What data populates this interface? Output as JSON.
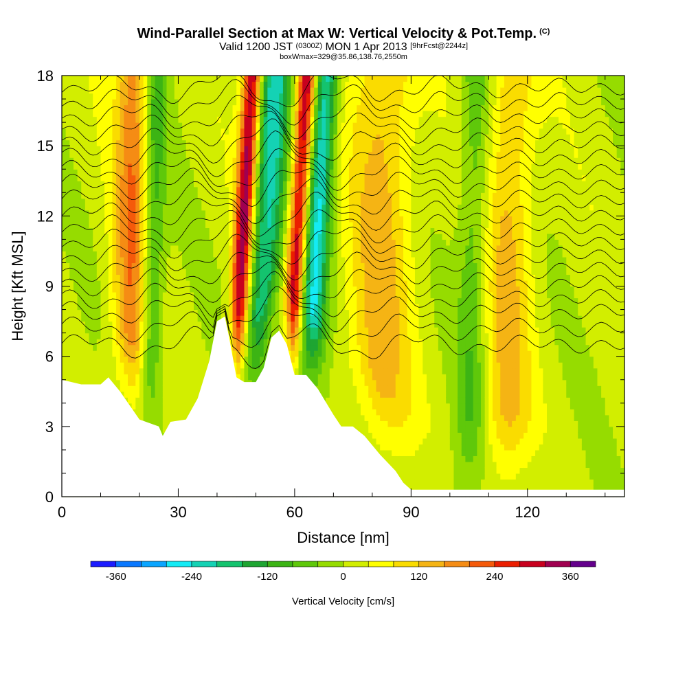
{
  "header": {
    "title": "Wind-Parallel Section at Max W: Vertical Velocity & Pot.Temp.",
    "copyright": "(C)",
    "valid_prefix": "Valid 1200 JST",
    "valid_zulu": "(0300Z)",
    "valid_date": "MON 1 Apr 2013",
    "forecast_tag": "[9hrFcst@2244z]",
    "box_info": "boxWmax=329@35.86,138.76,2550m"
  },
  "chart_data": {
    "type": "heatmap",
    "title": "Wind-Parallel Section at Max W: Vertical Velocity & Pot.Temp.",
    "xlabel": "Distance [nm]",
    "ylabel": "Height [Kft MSL]",
    "xlim": [
      0,
      145
    ],
    "ylim": [
      0,
      18
    ],
    "x_ticks": [
      "0",
      "30",
      "60",
      "90",
      "120"
    ],
    "x_tick_values": [
      0,
      30,
      60,
      90,
      120
    ],
    "y_ticks": [
      "0",
      "3",
      "6",
      "9",
      "12",
      "15",
      "18"
    ],
    "y_tick_values": [
      0,
      3,
      6,
      9,
      12,
      15,
      18
    ],
    "colorbar": {
      "label": "Vertical Velocity [cm/s]",
      "tick_labels": [
        "-360",
        "-240",
        "-120",
        "0",
        "120",
        "240",
        "360"
      ],
      "tick_values": [
        -360,
        -240,
        -120,
        0,
        120,
        240,
        360
      ],
      "bins": [
        -400,
        -360,
        -320,
        -280,
        -240,
        -200,
        -160,
        -120,
        -80,
        -40,
        0,
        40,
        80,
        120,
        160,
        200,
        240,
        280,
        320,
        360,
        400
      ],
      "colors": [
        "#1c1cff",
        "#0a78ff",
        "#0aa5ff",
        "#14ebf5",
        "#14d2b4",
        "#14c36e",
        "#1ea532",
        "#3cb414",
        "#5fc80a",
        "#96dc00",
        "#d2ee00",
        "#ffff00",
        "#fadc00",
        "#f5b414",
        "#f58c14",
        "#f55a0a",
        "#eb1e00",
        "#c8001e",
        "#a00050",
        "#64008c"
      ]
    },
    "terrain_heights_kft": [
      [
        0,
        5.0
      ],
      [
        5,
        4.8
      ],
      [
        10,
        4.8
      ],
      [
        12,
        5.1
      ],
      [
        15,
        4.5
      ],
      [
        20,
        3.3
      ],
      [
        25,
        3.0
      ],
      [
        26,
        2.6
      ],
      [
        28,
        3.2
      ],
      [
        32,
        3.3
      ],
      [
        35,
        4.2
      ],
      [
        38,
        5.8
      ],
      [
        40,
        7.5
      ],
      [
        42,
        7.7
      ],
      [
        43,
        6.9
      ],
      [
        45,
        5.1
      ],
      [
        47,
        4.9
      ],
      [
        50,
        4.9
      ],
      [
        52,
        5.5
      ],
      [
        54,
        6.8
      ],
      [
        56,
        7.1
      ],
      [
        58,
        6.5
      ],
      [
        60,
        5.2
      ],
      [
        63,
        5.2
      ],
      [
        66,
        4.6
      ],
      [
        70,
        3.5
      ],
      [
        72,
        3.0
      ],
      [
        75,
        3.0
      ],
      [
        78,
        2.6
      ],
      [
        82,
        1.8
      ],
      [
        86,
        1.1
      ],
      [
        88,
        0.6
      ],
      [
        90,
        0.3
      ],
      [
        145,
        0.3
      ]
    ],
    "updraft_bands": [
      {
        "x": 18,
        "w": 180,
        "width_nm": 6
      },
      {
        "x": 46,
        "w": 329,
        "width_nm": 3
      },
      {
        "x": 60,
        "w": 310,
        "width_nm": 3
      },
      {
        "x": 82,
        "w": 120,
        "width_nm": 10
      },
      {
        "x": 115,
        "w": 110,
        "width_nm": 8
      }
    ],
    "downdraft_bands": [
      {
        "x": 23,
        "w": -140,
        "width_nm": 4
      },
      {
        "x": 52,
        "w": -230,
        "width_nm": 5
      },
      {
        "x": 65,
        "w": -250,
        "width_nm": 4
      },
      {
        "x": 106,
        "w": -90,
        "width_nm": 5
      }
    ],
    "theta_contour_heights_kft": [
      6.5,
      7.2,
      7.9,
      8.5,
      9.1,
      9.7,
      10.3,
      10.9,
      11.5,
      12.1,
      12.7,
      13.3,
      13.9,
      14.5,
      15.1,
      15.7,
      16.3,
      16.9,
      17.5
    ]
  }
}
